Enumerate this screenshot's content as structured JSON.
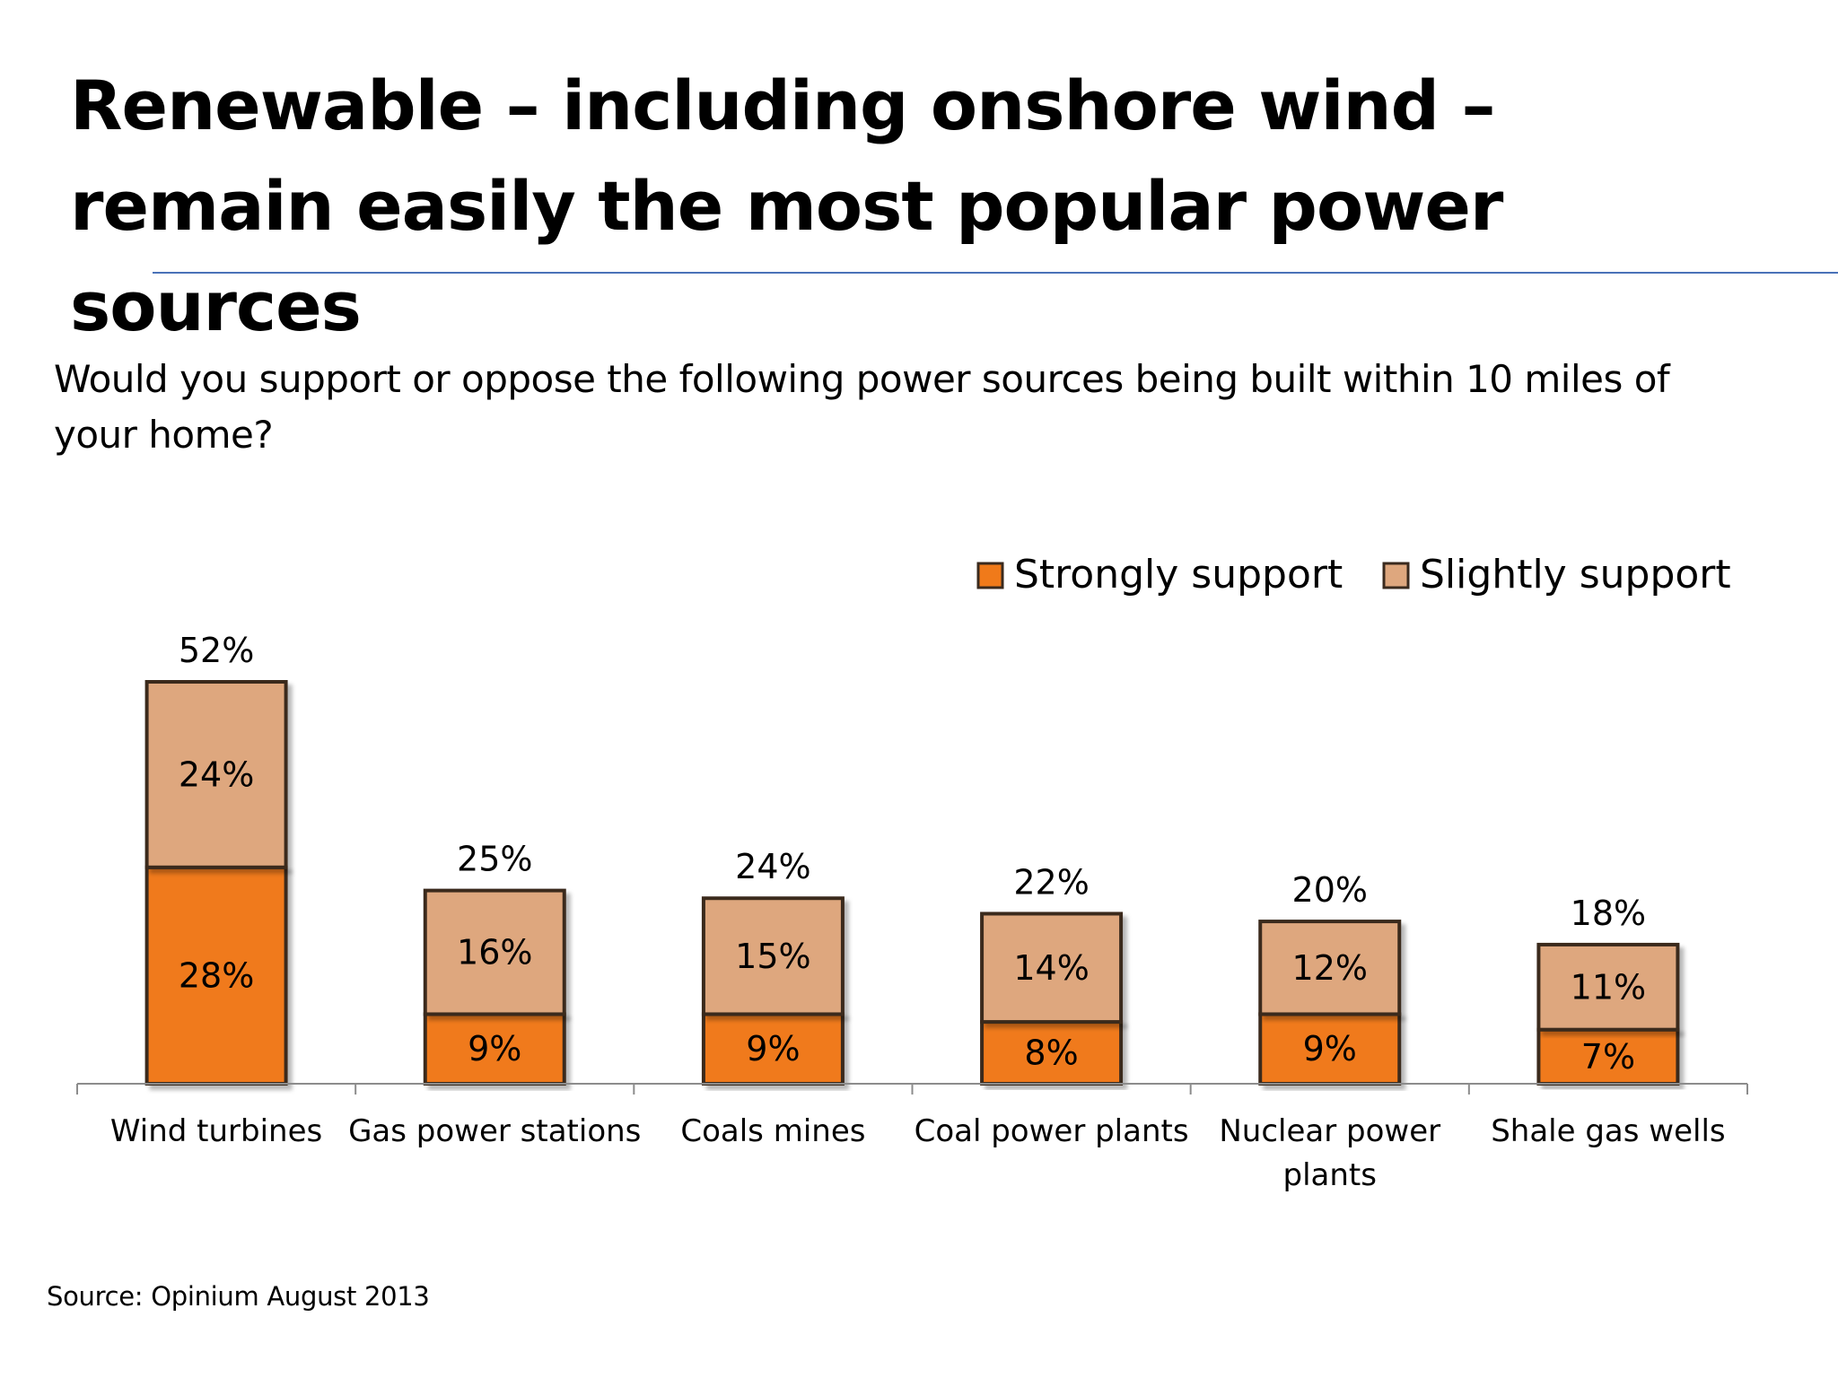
{
  "slide": {
    "title": "Renewable – including onshore wind – remain easily the most popular power sources",
    "question": "Would you support or oppose the following power sources being built within 10 miles of your home?",
    "source": "Source: Opinium August 2013"
  },
  "colors": {
    "strongly_support": "#f07a1a",
    "slightly_support": "#dea77e",
    "bar_outline": "#3a2a1e",
    "axis": "#8c8c8c",
    "title_rule": "#4a72b8"
  },
  "chart_data": {
    "type": "bar",
    "stacked": true,
    "categories": [
      "Wind turbines",
      "Gas power stations",
      "Coals mines",
      "Coal power plants",
      "Nuclear power plants",
      "Shale gas wells"
    ],
    "category_lines": [
      [
        "Wind turbines"
      ],
      [
        "Gas power stations"
      ],
      [
        "Coals mines"
      ],
      [
        "Coal power plants"
      ],
      [
        "Nuclear power",
        "plants"
      ],
      [
        "Shale gas wells"
      ]
    ],
    "series": [
      {
        "name": "Strongly support",
        "values": [
          28,
          9,
          9,
          8,
          9,
          7
        ],
        "labels": [
          "28%",
          "9%",
          "9%",
          "8%",
          "9%",
          "7%"
        ]
      },
      {
        "name": "Slightly support",
        "values": [
          24,
          16,
          15,
          14,
          12,
          11
        ],
        "labels": [
          "24%",
          "16%",
          "15%",
          "14%",
          "12%",
          "11%"
        ]
      }
    ],
    "totals": [
      52,
      25,
      24,
      22,
      20,
      18
    ],
    "total_labels": [
      "52%",
      "25%",
      "24%",
      "22%",
      "20%",
      "18%"
    ],
    "ylim": [
      0,
      52
    ],
    "grid": false,
    "legend_position": "top-right",
    "xlabel": "",
    "ylabel": ""
  }
}
